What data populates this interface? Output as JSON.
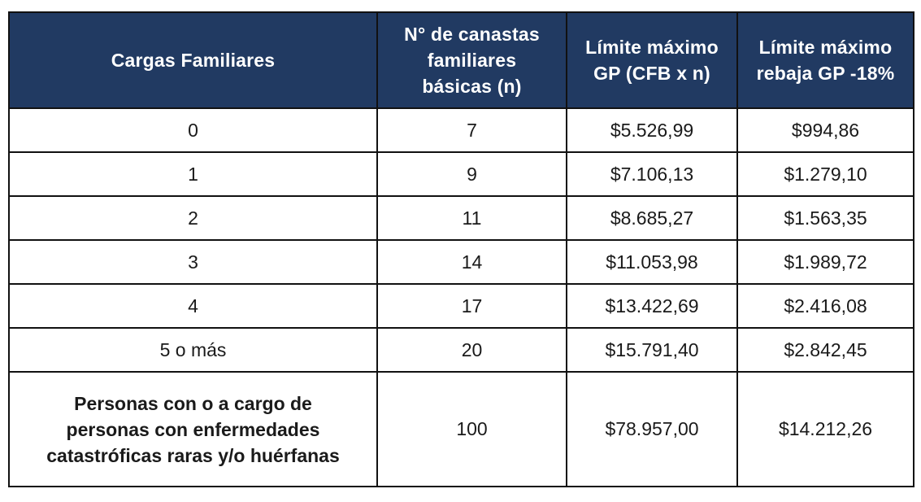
{
  "table": {
    "headers": [
      [
        "Cargas Familiares"
      ],
      [
        "N° de canastas",
        "familiares",
        "básicas (n)"
      ],
      [
        "Límite máximo",
        "GP (CFB x n)"
      ],
      [
        "Límite máximo",
        "rebaja GP -18%"
      ]
    ],
    "rows": [
      {
        "cargas": "0",
        "n": "7",
        "limite": "$5.526,99",
        "rebaja": "$994,86"
      },
      {
        "cargas": "1",
        "n": "9",
        "limite": "$7.106,13",
        "rebaja": "$1.279,10"
      },
      {
        "cargas": "2",
        "n": "11",
        "limite": "$8.685,27",
        "rebaja": "$1.563,35"
      },
      {
        "cargas": "3",
        "n": "14",
        "limite": "$11.053,98",
        "rebaja": "$1.989,72"
      },
      {
        "cargas": "4",
        "n": "17",
        "limite": "$13.422,69",
        "rebaja": "$2.416,08"
      },
      {
        "cargas": "5 o más",
        "n": "20",
        "limite": "$15.791,40",
        "rebaja": "$2.842,45"
      }
    ],
    "special_row": {
      "label_lines": [
        "Personas con o a cargo de",
        "personas con enfermedades",
        "catastróficas raras y/o huérfanas"
      ],
      "n": "100",
      "limite": "$78.957,00",
      "rebaja": "$14.212,26"
    },
    "colors": {
      "header_bg": "#213a62",
      "header_text": "#ffffff",
      "border": "#111111"
    }
  }
}
